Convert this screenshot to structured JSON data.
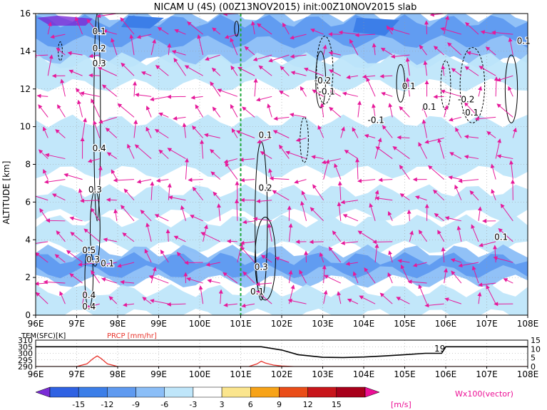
{
  "chart_data": [
    {
      "type": "heatmap",
      "title": "NICAM U (4S) (00Z13NOV2015) init:00Z10NOV2015 slab",
      "ylabel": "ALTITUDE [km]",
      "xlim": [
        96,
        108
      ],
      "ylim": [
        0,
        16
      ],
      "x_ticks": [
        "96E",
        "97E",
        "98E",
        "99E",
        "100E",
        "101E",
        "102E",
        "103E",
        "104E",
        "105E",
        "106E",
        "107E",
        "108E"
      ],
      "y_ticks": [
        "0",
        "2",
        "4",
        "6",
        "8",
        "10",
        "12",
        "14",
        "16"
      ],
      "grid": true,
      "marker_line_lon": 101.0,
      "contour_labels": [
        {
          "text": "0.1",
          "x": 97.55,
          "y": 14.9
        },
        {
          "text": "0.2",
          "x": 97.55,
          "y": 14.0
        },
        {
          "text": "0.3",
          "x": 97.55,
          "y": 13.2
        },
        {
          "text": "0.4",
          "x": 97.55,
          "y": 8.7
        },
        {
          "text": "0.3",
          "x": 97.45,
          "y": 6.5
        },
        {
          "text": "0.5",
          "x": 97.3,
          "y": 3.3
        },
        {
          "text": "0.3",
          "x": 97.4,
          "y": 2.8
        },
        {
          "text": "0.1",
          "x": 97.75,
          "y": 2.6
        },
        {
          "text": "0.4",
          "x": 97.3,
          "y": 0.9
        },
        {
          "text": "0.4",
          "x": 97.3,
          "y": 0.3
        },
        {
          "text": "0.1",
          "x": 101.6,
          "y": 9.4
        },
        {
          "text": "0.2",
          "x": 101.6,
          "y": 6.6
        },
        {
          "text": "0.3",
          "x": 101.5,
          "y": 2.4
        },
        {
          "text": "0.1",
          "x": 101.4,
          "y": 1.1
        },
        {
          "text": "-0.2",
          "x": 103.0,
          "y": 12.3
        },
        {
          "text": "-0.1",
          "x": 103.1,
          "y": 11.7
        },
        {
          "text": "-0.1",
          "x": 104.3,
          "y": 10.2
        },
        {
          "text": "0.1",
          "x": 105.1,
          "y": 12.0
        },
        {
          "text": "0.1",
          "x": 105.6,
          "y": 10.9
        },
        {
          "text": "-0.2",
          "x": 106.5,
          "y": 11.3
        },
        {
          "text": "-0.1",
          "x": 106.6,
          "y": 10.6
        },
        {
          "text": "0.1",
          "x": 107.9,
          "y": 14.4
        },
        {
          "text": "0.1",
          "x": 107.35,
          "y": 4.0
        }
      ]
    },
    {
      "type": "line",
      "x_ticks": [
        "96E",
        "97E",
        "98E",
        "99E",
        "100E",
        "101E",
        "102E",
        "103E",
        "104E",
        "105E",
        "106E",
        "107E",
        "108E"
      ],
      "left_label": "TEM(SFC)[K]",
      "right_label": "PRCP [mm/hr]",
      "left_ticks": [
        "290",
        "295",
        "300",
        "305",
        "310"
      ],
      "right_ticks": [
        "0",
        "5",
        "10",
        "15"
      ],
      "ylim_left": [
        290,
        310
      ],
      "ylim_right": [
        0,
        15
      ],
      "series": [
        {
          "name": "TEM(SFC)[K]",
          "color": "#000000",
          "x": [
            96,
            97,
            98,
            99,
            100,
            101,
            101.5,
            102,
            102.4,
            103,
            103.5,
            104,
            104.5,
            105,
            105.5,
            105.9,
            106,
            106.5,
            107,
            108
          ],
          "y": [
            305,
            305,
            305,
            305,
            305,
            305,
            305,
            302.5,
            299,
            297,
            296.8,
            297.2,
            298,
            299,
            300,
            300,
            305,
            305,
            305,
            305
          ]
        },
        {
          "name": "PRCP [mm/hr]",
          "color": "#e8332b",
          "x": [
            96,
            97.0,
            97.25,
            97.4,
            97.5,
            97.6,
            97.75,
            98.0,
            98.5,
            101.2,
            101.4,
            101.5,
            101.6,
            101.8,
            102.0,
            102.3,
            103,
            108
          ],
          "y": [
            0,
            0,
            1.5,
            4.5,
            6,
            4.5,
            1.5,
            0,
            0,
            0,
            1.5,
            3,
            2,
            0.8,
            0.3,
            0,
            0,
            0
          ]
        }
      ],
      "annotation": "19"
    },
    {
      "type": "colorbar",
      "tick_labels": [
        "-15",
        "-12",
        "-9",
        "-6",
        "-3",
        "3",
        "6",
        "9",
        "12",
        "15"
      ],
      "colors": [
        "#7b2cd6",
        "#2f62e3",
        "#3c7ee8",
        "#5f9af0",
        "#8bbef7",
        "#bfe6fa",
        "#ffffff",
        "#fbe58d",
        "#f7a318",
        "#ea4d18",
        "#c8151b",
        "#a8001b",
        "#ec0f95"
      ],
      "unit": "[m/s]",
      "vector_label": "Wx100(vector)"
    }
  ]
}
